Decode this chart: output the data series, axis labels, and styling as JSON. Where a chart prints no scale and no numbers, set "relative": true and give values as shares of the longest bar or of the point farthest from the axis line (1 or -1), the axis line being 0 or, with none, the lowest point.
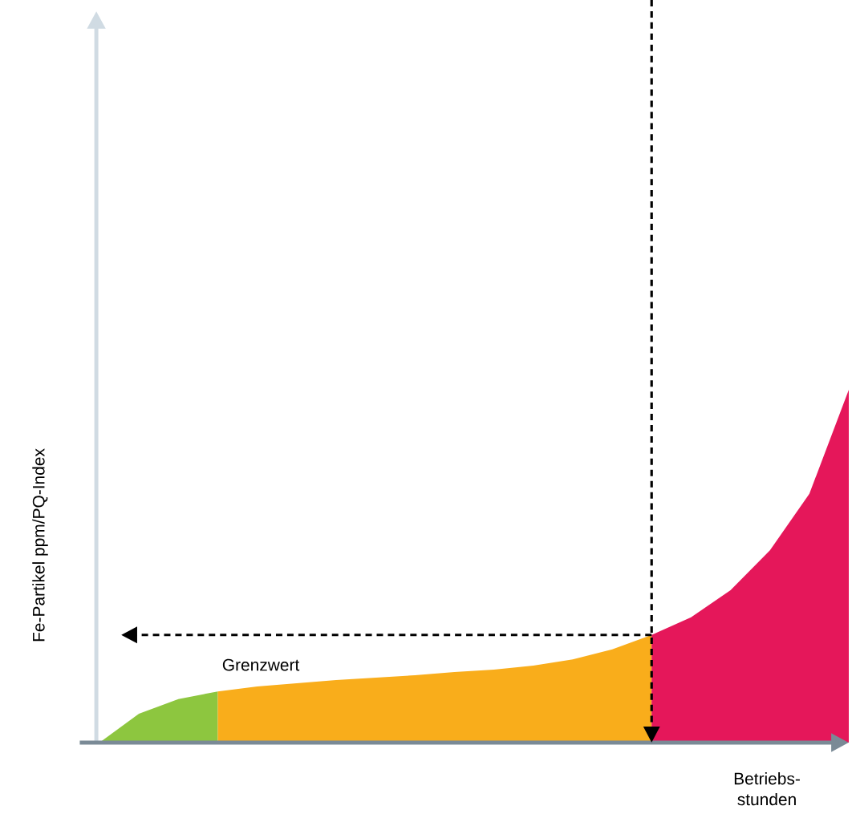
{
  "chart_data": {
    "type": "area",
    "relative": true,
    "xlabel": "Betriebs-stunden",
    "ylabel": "Fe-Partikel ppm/PQ-Index",
    "categories": [
      null,
      null,
      null,
      null,
      null,
      null,
      null,
      null,
      null,
      null,
      null,
      null,
      null,
      null,
      null,
      null,
      null,
      null,
      null,
      null
    ],
    "series": [
      {
        "color": "#8dc63f",
        "values": [
          0,
          0.082,
          0.123,
          0.145,
          null,
          null,
          null,
          null,
          null,
          null,
          null,
          null,
          null,
          null,
          null,
          null,
          null,
          null,
          null,
          null
        ]
      },
      {
        "color": "#f9ad1b",
        "values": [
          null,
          null,
          null,
          0.145,
          0.159,
          0.168,
          0.177,
          0.184,
          0.191,
          0.2,
          0.207,
          0.218,
          0.236,
          0.264,
          0.305,
          null,
          null,
          null,
          null,
          null
        ]
      },
      {
        "color": "#e5175a",
        "values": [
          null,
          null,
          null,
          null,
          null,
          null,
          null,
          null,
          null,
          null,
          null,
          null,
          null,
          null,
          0.305,
          0.355,
          0.432,
          0.545,
          0.705,
          1
        ]
      }
    ],
    "ref_lines": [
      {
        "axis": "y",
        "value": 0.305,
        "label": "Grenzwert",
        "line_style": "dashed"
      }
    ]
  }
}
